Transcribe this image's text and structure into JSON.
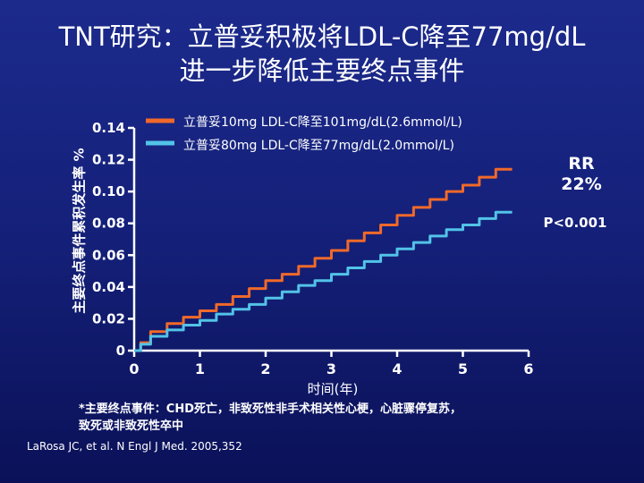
{
  "slide": {
    "title_line1": "TNT研究：立普妥积极将LDL-C降至77mg/dL",
    "title_line2": "进一步降低主要终点事件",
    "annotation_rr": "RR\n22%",
    "annotation_p": "P<0.001",
    "footnote": "*主要终点事件：CHD死亡，非致死性非手术相关性心梗，心脏骤停复苏，\n  致死或非致死性卒中",
    "reference": "LaRosa JC, et al. N Engl J Med. 2005,352",
    "background_color": "#142078"
  },
  "chart_data": {
    "type": "line",
    "ylabel": "主要终点事件累积发生率 %",
    "xlabel": "时间(年)",
    "xlim": [
      0,
      6
    ],
    "ylim": [
      0,
      0.14
    ],
    "x_ticks": [
      "0",
      "1",
      "2",
      "3",
      "4",
      "5",
      "6"
    ],
    "y_ticks": [
      "0",
      "0.02",
      "0.04",
      "0.06",
      "0.08",
      "0.10",
      "0.12",
      "0.14"
    ],
    "legend_placement": "top",
    "grid": false,
    "series": [
      {
        "name": "立普妥10mg LDL-C降至101mg/dL(2.6mmol/L)",
        "color": "#f0692a",
        "x": [
          0,
          0.1,
          0.25,
          0.5,
          0.75,
          1.0,
          1.25,
          1.5,
          1.75,
          2.0,
          2.25,
          2.5,
          2.75,
          3.0,
          3.25,
          3.5,
          3.75,
          4.0,
          4.25,
          4.5,
          4.75,
          5.0,
          5.25,
          5.5,
          5.75
        ],
        "y": [
          0,
          0.005,
          0.012,
          0.017,
          0.021,
          0.025,
          0.029,
          0.034,
          0.039,
          0.044,
          0.048,
          0.053,
          0.058,
          0.063,
          0.069,
          0.074,
          0.079,
          0.085,
          0.09,
          0.095,
          0.1,
          0.104,
          0.109,
          0.114,
          0.114
        ]
      },
      {
        "name": "立普妥80mg LDL-C降至77mg/dL(2.0mmol/L)",
        "color": "#52c3e8",
        "x": [
          0,
          0.1,
          0.25,
          0.5,
          0.75,
          1.0,
          1.25,
          1.5,
          1.75,
          2.0,
          2.25,
          2.5,
          2.75,
          3.0,
          3.25,
          3.5,
          3.75,
          4.0,
          4.25,
          4.5,
          4.75,
          5.0,
          5.25,
          5.5,
          5.75
        ],
        "y": [
          0,
          0.004,
          0.009,
          0.013,
          0.016,
          0.019,
          0.023,
          0.026,
          0.029,
          0.033,
          0.037,
          0.041,
          0.044,
          0.048,
          0.052,
          0.056,
          0.06,
          0.064,
          0.068,
          0.072,
          0.076,
          0.079,
          0.083,
          0.087,
          0.087
        ]
      }
    ]
  }
}
